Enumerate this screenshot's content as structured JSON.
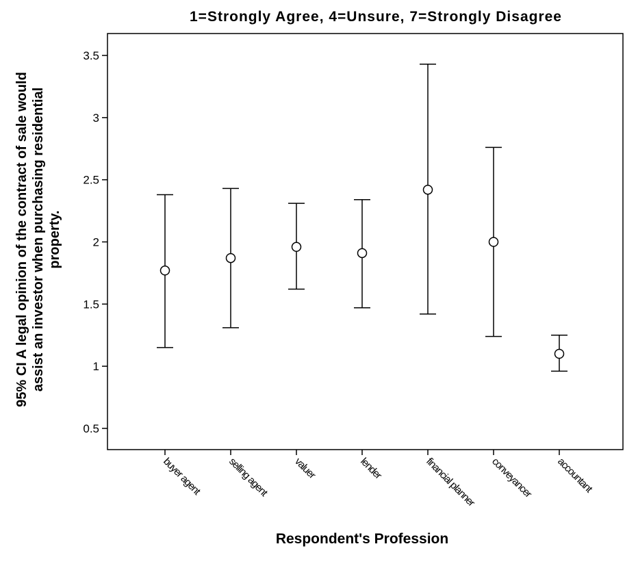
{
  "chart_data": {
    "type": "errorbar",
    "title": "1=Strongly Agree,  4=Unsure,  7=Strongly Disagree",
    "xlabel": "Respondent's Profession",
    "ylabel_lines": [
      "95% CI A legal opinion of the contract of sale would",
      "assist an investor when purchasing residential",
      "property."
    ],
    "ylim": [
      0.3,
      3.95
    ],
    "yticks": [
      0.5,
      1,
      1.5,
      2,
      2.5,
      3,
      3.5
    ],
    "ytick_labels": [
      "0.5",
      "1",
      "1.5",
      "2",
      "2.5",
      "3",
      "3.5"
    ],
    "categories": [
      "buyer agent",
      "selling agent",
      "valuer",
      "lender",
      "financial planner",
      "conveyancer",
      "accountant"
    ],
    "means": [
      1.77,
      1.87,
      1.96,
      1.91,
      2.42,
      2.0,
      1.1
    ],
    "lower": [
      1.15,
      1.31,
      1.62,
      1.47,
      1.42,
      1.24,
      0.96
    ],
    "upper": [
      2.38,
      2.43,
      2.31,
      2.34,
      3.43,
      2.76,
      1.25
    ],
    "grid": false
  }
}
